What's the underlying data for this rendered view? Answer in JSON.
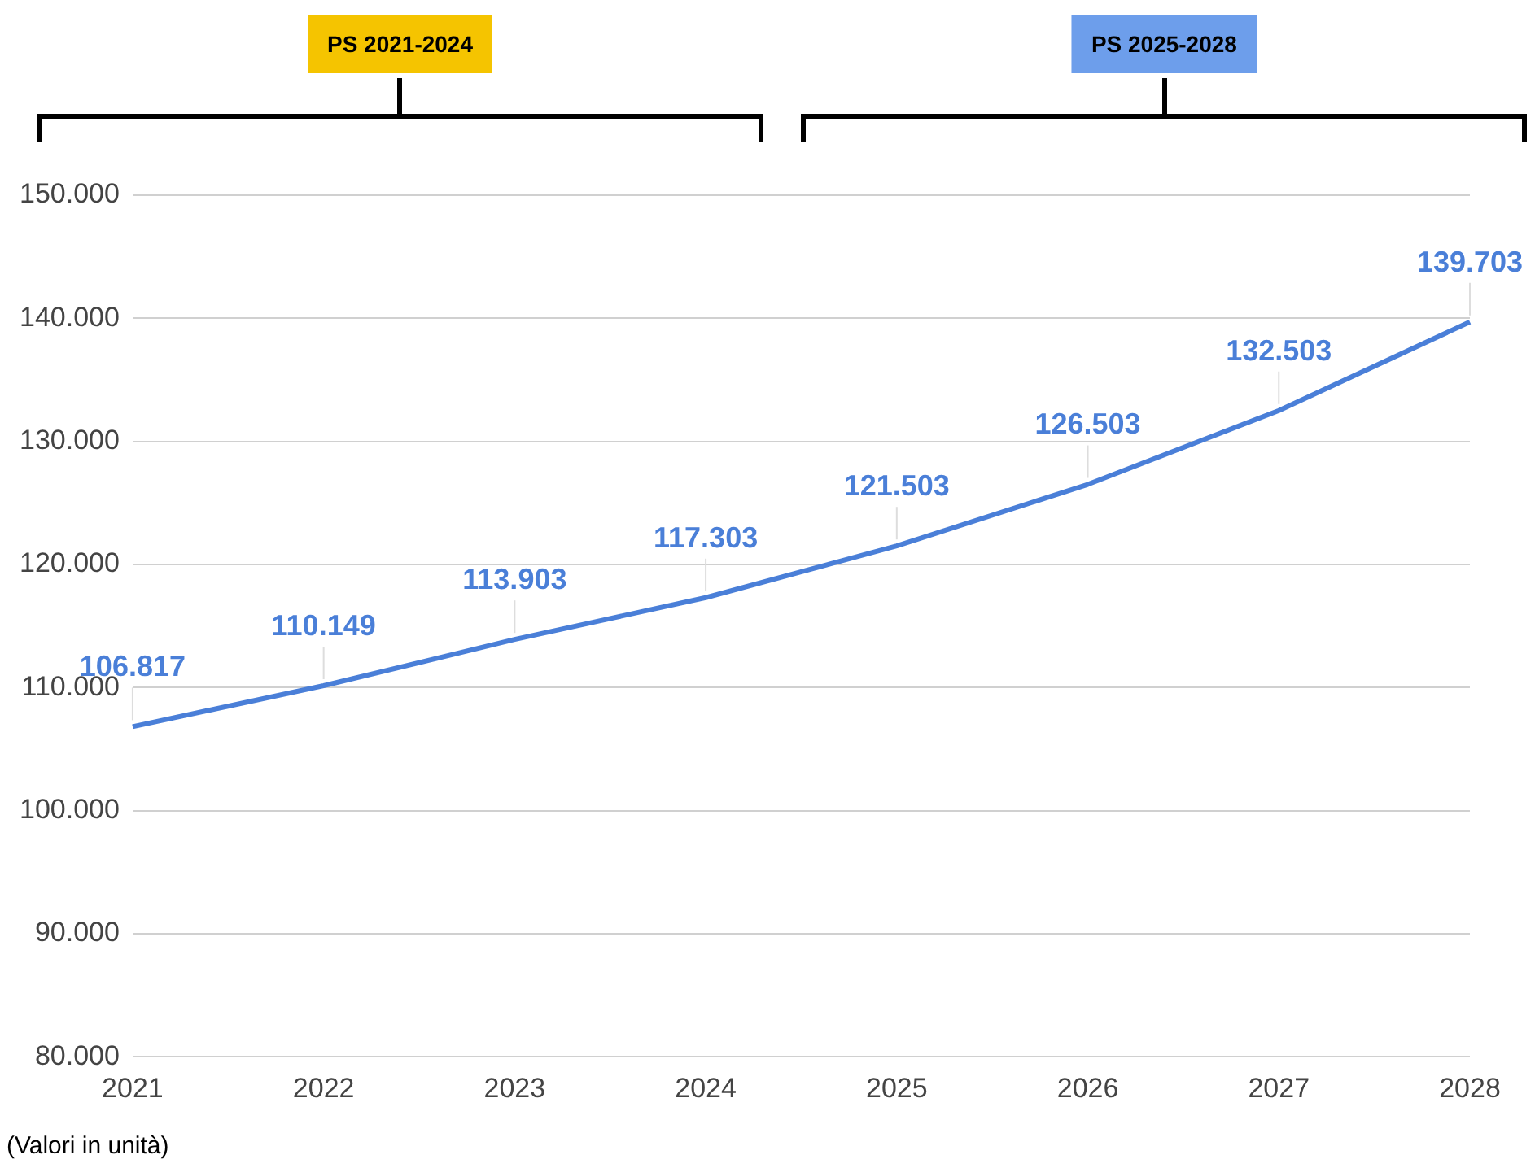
{
  "chart_data": {
    "type": "line",
    "categories": [
      "2021",
      "2022",
      "2023",
      "2024",
      "2025",
      "2026",
      "2027",
      "2028"
    ],
    "series": [
      {
        "color": "#4a7fd8",
        "values": [
          106817,
          110149,
          113903,
          117303,
          121503,
          126503,
          132503,
          139703
        ],
        "value_labels": [
          "106.817",
          "110.149",
          "113.903",
          "117.303",
          "121.503",
          "126.503",
          "132.503",
          "139.703"
        ]
      }
    ],
    "ylim": [
      80000,
      150000
    ],
    "yticks": [
      {
        "value": 80000,
        "label": "80.000"
      },
      {
        "value": 90000,
        "label": "90.000"
      },
      {
        "value": 100000,
        "label": "100.000"
      },
      {
        "value": 110000,
        "label": "110.000"
      },
      {
        "value": 120000,
        "label": "120.000"
      },
      {
        "value": 130000,
        "label": "130.000"
      },
      {
        "value": 140000,
        "label": "140.000"
      },
      {
        "value": 150000,
        "label": "150.000"
      }
    ],
    "grid": "y",
    "legend": false,
    "marker": "none",
    "line_style": "solid",
    "annotations": [
      "PS 2021-2024",
      "PS 2025-2028",
      "(Valori in unità)"
    ]
  }
}
